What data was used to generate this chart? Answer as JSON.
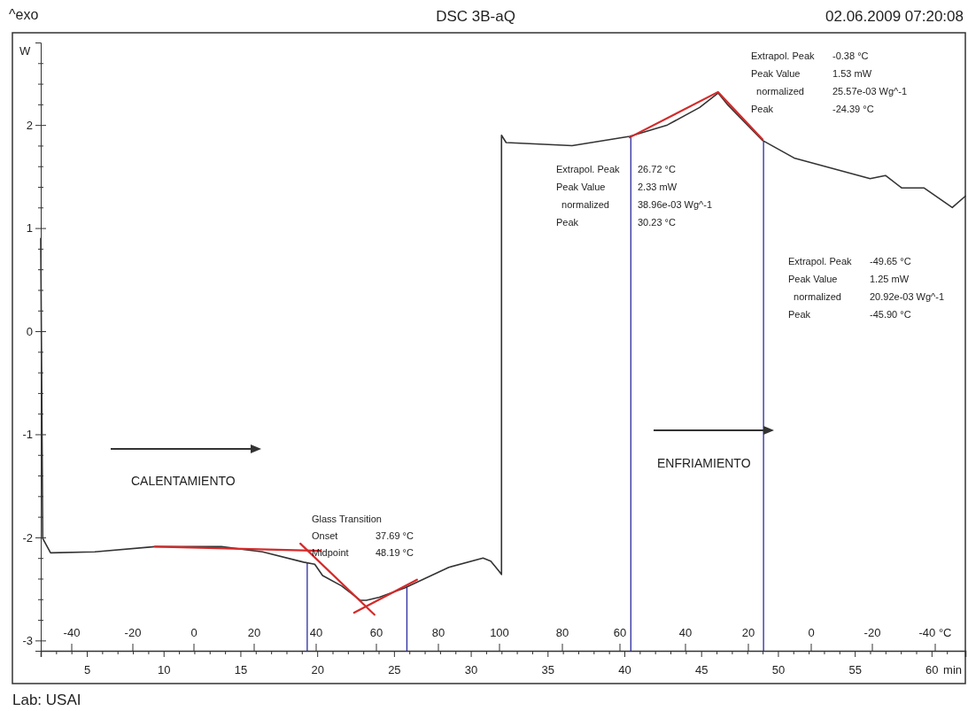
{
  "chart_data": {
    "type": "line",
    "title": "DSC 3B-aQ",
    "xlabel": "min",
    "ylabel": "W",
    "xlim": [
      2,
      62.2
    ],
    "ylim": [
      -3.1,
      2.8
    ],
    "xticks": [
      {
        "value": 3,
        "label": null
      },
      {
        "value": 4,
        "label": null
      },
      5,
      {
        "value": 6,
        "label": null
      },
      {
        "value": 7,
        "label": null
      },
      {
        "value": 8,
        "label": null
      },
      {
        "value": 9,
        "label": null
      },
      10,
      {
        "value": 11,
        "label": null
      },
      {
        "value": 12,
        "label": null
      },
      {
        "value": 13,
        "label": null
      },
      {
        "value": 14,
        "label": null
      },
      15,
      {
        "value": 16,
        "label": null
      },
      {
        "value": 17,
        "label": null
      },
      {
        "value": 18,
        "label": null
      },
      {
        "value": 19,
        "label": null
      },
      20,
      {
        "value": 21,
        "label": null
      },
      {
        "value": 22,
        "label": null
      },
      {
        "value": 23,
        "label": null
      },
      {
        "value": 24,
        "label": null
      },
      25,
      {
        "value": 26,
        "label": null
      },
      {
        "value": 27,
        "label": null
      },
      {
        "value": 28,
        "label": null
      },
      {
        "value": 29,
        "label": null
      },
      30,
      {
        "value": 31,
        "label": null
      },
      {
        "value": 32,
        "label": null
      },
      {
        "value": 33,
        "label": null
      },
      {
        "value": 34,
        "label": null
      },
      35,
      {
        "value": 36,
        "label": null
      },
      {
        "value": 37,
        "label": null
      },
      {
        "value": 38,
        "label": null
      },
      {
        "value": 39,
        "label": null
      },
      40,
      {
        "value": 41,
        "label": null
      },
      {
        "value": 42,
        "label": null
      },
      {
        "value": 43,
        "label": null
      },
      {
        "value": 44,
        "label": null
      },
      45,
      {
        "value": 46,
        "label": null
      },
      {
        "value": 47,
        "label": null
      },
      {
        "value": 48,
        "label": null
      },
      {
        "value": 49,
        "label": null
      },
      50,
      {
        "value": 51,
        "label": null
      },
      {
        "value": 52,
        "label": null
      },
      {
        "value": 53,
        "label": null
      },
      {
        "value": 54,
        "label": null
      },
      55,
      {
        "value": 56,
        "label": null
      },
      {
        "value": 57,
        "label": null
      },
      {
        "value": 58,
        "label": null
      },
      {
        "value": 59,
        "label": null
      },
      60,
      {
        "value": 61,
        "label": null
      }
    ],
    "yticks": [
      -3,
      {
        "value": -2.8,
        "label": null
      },
      {
        "value": -2.6,
        "label": null
      },
      {
        "value": -2.4,
        "label": null
      },
      {
        "value": -2.2,
        "label": null
      },
      -2,
      {
        "value": -1.8,
        "label": null
      },
      {
        "value": -1.6,
        "label": null
      },
      {
        "value": -1.4,
        "label": null
      },
      {
        "value": -1.2,
        "label": null
      },
      -1,
      {
        "value": -0.8,
        "label": null
      },
      {
        "value": -0.6,
        "label": null
      },
      {
        "value": -0.4,
        "label": null
      },
      {
        "value": -0.2,
        "label": null
      },
      0,
      {
        "value": 0.2,
        "label": null
      },
      {
        "value": 0.4,
        "label": null
      },
      {
        "value": 0.6,
        "label": null
      },
      {
        "value": 0.8,
        "label": null
      },
      1,
      {
        "value": 1.2,
        "label": null
      },
      {
        "value": 1.4,
        "label": null
      },
      {
        "value": 1.6,
        "label": null
      },
      {
        "value": 1.8,
        "label": null
      },
      2,
      {
        "value": 2.2,
        "label": null
      },
      {
        "value": 2.4,
        "label": null
      },
      {
        "value": 2.6,
        "label": null
      }
    ],
    "series": [
      {
        "color": "#333333",
        "x": [
          2.0,
          2.13,
          2.64,
          5.52,
          9.44,
          13.76,
          16.44,
          19.11,
          19.84,
          20.35,
          21.58,
          22.8,
          23.2,
          24.05,
          25.7,
          28.57,
          30.8,
          31.3,
          31.8,
          32.0,
          32.0,
          32.3,
          36.6,
          40.35,
          42.8,
          44.9,
          46.1,
          46.7,
          49.0,
          51.05,
          56.0,
          57.0,
          58.05,
          59.5,
          61.35,
          62.2
        ],
        "values": [
          0.9,
          -2.01,
          -2.15,
          -2.14,
          -2.09,
          -2.09,
          -2.14,
          -2.24,
          -2.26,
          -2.37,
          -2.47,
          -2.61,
          -2.61,
          -2.58,
          -2.49,
          -2.29,
          -2.2,
          -2.23,
          -2.32,
          -2.36,
          1.9,
          1.83,
          1.8,
          1.89,
          2.0,
          2.17,
          2.31,
          2.2,
          1.85,
          1.68,
          1.48,
          1.51,
          1.39,
          1.39,
          1.2,
          1.31
        ]
      },
      {
        "color": "#d42a2a",
        "x": [
          9.44,
          20.24
        ],
        "values": [
          -2.09,
          -2.13
        ]
      },
      {
        "color": "#d42a2a",
        "x": [
          18.9,
          23.73
        ],
        "values": [
          -2.06,
          -2.75
        ]
      },
      {
        "color": "#d42a2a",
        "x": [
          22.4,
          26.5
        ],
        "values": [
          -2.73,
          -2.41
        ]
      },
      {
        "color": "#d42a2a",
        "x": [
          40.35,
          46.1,
          49.0
        ],
        "values": [
          1.88,
          2.32,
          1.86
        ]
      }
    ],
    "ref_lines": [
      {
        "axis": "x",
        "value": 19.35,
        "color": "#2a2aa0"
      },
      {
        "axis": "x",
        "value": 25.84,
        "color": "#2a2aa0"
      },
      {
        "axis": "x",
        "value": 40.42,
        "color": "#2a2aa0"
      },
      {
        "axis": "x",
        "value": 49.06,
        "color": "#2a2aa0"
      }
    ],
    "annotations": [
      "^exo",
      "02.06.2009 07:20:08",
      "Lab: USAI",
      "CALENTAMIENTO",
      "ENFRIAMIENTO",
      "Glass Transition\nOnset\t37.69 °C\nMidpoint\t48.19 °C",
      "Extrapol. Peak\t26.72 °C\nPeak Value\t2.33 mW\n  normalized\t38.96e-03 Wg^-1\nPeak\t30.23 °C",
      "Extrapol. Peak\t-0.38 °C\nPeak Value\t1.53 mW\n  normalized\t25.57e-03 Wg^-1\nPeak\t-24.39 °C",
      "Extrapol. Peak\t-49.65 °C\nPeak Value\t1.25 mW\n  normalized\t20.92e-03 Wg^-1\nPeak\t-45.90 °C",
      "-40",
      "-20",
      "0",
      "20",
      "40",
      "60",
      "80",
      "100",
      "80",
      "60",
      "40",
      "20",
      "0",
      "-20",
      "-40 °C"
    ]
  }
}
